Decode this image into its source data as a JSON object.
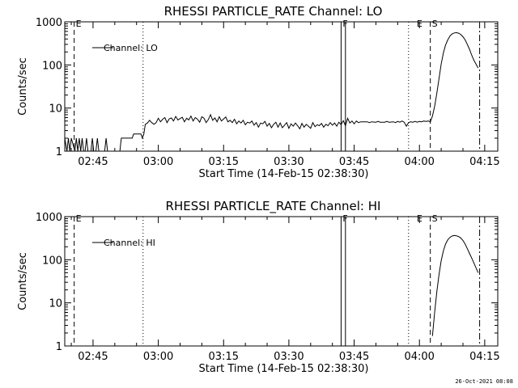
{
  "timestamp": "26-Oct-2021 08:08",
  "chart_data": [
    {
      "type": "line",
      "title": "RHESSI PARTICLE_RATE Channel: LO",
      "ylabel": "Counts/sec",
      "xlabel": "Start Time (14-Feb-15 02:38:30)",
      "yscale": "log",
      "ylim": [
        1,
        1000
      ],
      "xlim": [
        "02:38:30",
        "04:18:00"
      ],
      "x_ticks": [
        "02:45",
        "03:00",
        "03:15",
        "03:30",
        "03:45",
        "04:00",
        "04:15"
      ],
      "y_ticks": [
        "1",
        "10",
        "100",
        "1000"
      ],
      "legend": {
        "label": "Channel: LO",
        "placement": "top-left"
      },
      "markers": [
        {
          "label": "E",
          "time": "02:40:40",
          "style": "dashed"
        },
        {
          "time": "02:56:30",
          "style": "dotted"
        },
        {
          "label": "F",
          "time": "03:42:00",
          "style": "solid"
        },
        {
          "time": "03:43:00",
          "style": "solid"
        },
        {
          "time": "03:57:30",
          "style": "dotted"
        },
        {
          "label": "E",
          "time": "03:59:00"
        },
        {
          "label": "S",
          "time": "04:02:30",
          "style": "dashed"
        },
        {
          "time": "04:13:50",
          "style": "dashdot"
        }
      ],
      "series": [
        {
          "points": [
            [
              "02:38:30",
              2
            ],
            [
              "02:39:00",
              1
            ],
            [
              "02:39:20",
              2
            ],
            [
              "02:39:40",
              1
            ],
            [
              "02:40:00",
              2
            ],
            [
              "02:40:20",
              1.5
            ],
            [
              "02:40:50",
              1
            ],
            [
              "02:41:10",
              2
            ],
            [
              "02:41:30",
              1
            ],
            [
              "02:41:50",
              2
            ],
            [
              "02:42:10",
              1
            ],
            [
              "02:42:30",
              2
            ],
            [
              "02:42:50",
              1
            ],
            [
              "02:43:10",
              1
            ],
            [
              "02:43:30",
              2
            ],
            [
              "02:43:50",
              1
            ],
            [
              "02:44:10",
              1
            ],
            [
              "02:44:30",
              1
            ],
            [
              "02:44:50",
              2
            ],
            [
              "02:45:10",
              1
            ],
            [
              "02:45:40",
              1
            ],
            [
              "02:46:00",
              2
            ],
            [
              "02:46:20",
              1
            ],
            [
              "02:47:00",
              1
            ],
            [
              "02:47:40",
              1
            ],
            [
              "02:48:00",
              2
            ],
            [
              "02:48:20",
              1
            ],
            [
              "02:49:00",
              1
            ],
            [
              "02:49:40",
              1
            ],
            [
              "02:50:00",
              1
            ],
            [
              "02:50:40",
              1
            ],
            [
              "02:51:10",
              1
            ],
            [
              "02:51:30",
              2
            ],
            [
              "02:54:00",
              2
            ],
            [
              "02:54:20",
              2.5
            ],
            [
              "02:56:00",
              2.5
            ],
            [
              "02:56:20",
              2
            ],
            [
              "02:56:40",
              2.5
            ],
            [
              "02:57:00",
              4.2
            ],
            [
              "02:57:30",
              4.5
            ],
            [
              "02:58:00",
              5.2
            ],
            [
              "02:58:30",
              4.6
            ],
            [
              "02:59:00",
              4.2
            ],
            [
              "02:59:30",
              4.6
            ],
            [
              "03:00:00",
              5.8
            ],
            [
              "03:00:30",
              4.8
            ],
            [
              "03:01:00",
              5.5
            ],
            [
              "03:01:30",
              6.0
            ],
            [
              "03:02:00",
              4.6
            ],
            [
              "03:02:30",
              5.6
            ],
            [
              "03:03:00",
              5.9
            ],
            [
              "03:03:30",
              5.0
            ],
            [
              "03:04:00",
              6.4
            ],
            [
              "03:04:30",
              5.3
            ],
            [
              "03:05:00",
              5.7
            ],
            [
              "03:05:30",
              6.1
            ],
            [
              "03:06:00",
              4.8
            ],
            [
              "03:06:30",
              5.8
            ],
            [
              "03:07:00",
              5.3
            ],
            [
              "03:07:30",
              6.5
            ],
            [
              "03:08:00",
              5.0
            ],
            [
              "03:08:30",
              6.0
            ],
            [
              "03:09:00",
              5.5
            ],
            [
              "03:09:30",
              4.7
            ],
            [
              "03:10:00",
              6.3
            ],
            [
              "03:10:30",
              5.8
            ],
            [
              "03:11:00",
              4.6
            ],
            [
              "03:11:30",
              5.4
            ],
            [
              "03:12:00",
              7.0
            ],
            [
              "03:12:30",
              5.2
            ],
            [
              "03:13:00",
              5.9
            ],
            [
              "03:13:30",
              4.8
            ],
            [
              "03:14:00",
              6.3
            ],
            [
              "03:14:30",
              5.0
            ],
            [
              "03:15:00",
              5.6
            ],
            [
              "03:15:30",
              6.2
            ],
            [
              "03:16:00",
              4.8
            ],
            [
              "03:16:30",
              5.2
            ],
            [
              "03:17:00",
              4.6
            ],
            [
              "03:17:30",
              5.5
            ],
            [
              "03:18:00",
              4.3
            ],
            [
              "03:18:30",
              5.0
            ],
            [
              "03:19:00",
              4.5
            ],
            [
              "03:19:30",
              5.2
            ],
            [
              "03:20:00",
              4.1
            ],
            [
              "03:20:30",
              4.7
            ],
            [
              "03:21:00",
              4.5
            ],
            [
              "03:21:30",
              5.0
            ],
            [
              "03:22:00",
              4.0
            ],
            [
              "03:22:30",
              4.6
            ],
            [
              "03:23:00",
              3.6
            ],
            [
              "03:23:30",
              4.5
            ],
            [
              "03:24:00",
              4.3
            ],
            [
              "03:24:30",
              4.9
            ],
            [
              "03:25:00",
              3.8
            ],
            [
              "03:25:30",
              4.4
            ],
            [
              "03:26:00",
              3.5
            ],
            [
              "03:26:30",
              4.2
            ],
            [
              "03:27:00",
              4.7
            ],
            [
              "03:27:30",
              3.6
            ],
            [
              "03:28:00",
              4.5
            ],
            [
              "03:28:30",
              3.5
            ],
            [
              "03:29:00",
              4.0
            ],
            [
              "03:29:30",
              4.6
            ],
            [
              "03:30:00",
              3.4
            ],
            [
              "03:30:30",
              4.3
            ],
            [
              "03:31:00",
              3.8
            ],
            [
              "03:31:30",
              4.5
            ],
            [
              "03:32:00",
              3.9
            ],
            [
              "03:32:30",
              3.3
            ],
            [
              "03:33:00",
              4.4
            ],
            [
              "03:33:30",
              3.6
            ],
            [
              "03:34:00",
              4.2
            ],
            [
              "03:34:30",
              3.8
            ],
            [
              "03:35:00",
              3.4
            ],
            [
              "03:35:30",
              4.6
            ],
            [
              "03:36:00",
              3.7
            ],
            [
              "03:36:30",
              4.1
            ],
            [
              "03:37:00",
              3.9
            ],
            [
              "03:37:30",
              4.4
            ],
            [
              "03:38:00",
              3.6
            ],
            [
              "03:38:30",
              4.2
            ],
            [
              "03:39:00",
              3.9
            ],
            [
              "03:39:30",
              4.6
            ],
            [
              "03:40:00",
              4.0
            ],
            [
              "03:40:30",
              4.5
            ],
            [
              "03:41:00",
              3.8
            ],
            [
              "03:41:30",
              4.7
            ],
            [
              "03:42:00",
              4.1
            ],
            [
              "03:42:30",
              5.1
            ],
            [
              "03:43:00",
              3.9
            ],
            [
              "03:43:30",
              5.8
            ],
            [
              "03:44:00",
              4.5
            ],
            [
              "03:44:30",
              5.0
            ],
            [
              "03:45:00",
              4.3
            ],
            [
              "03:45:30",
              5.0
            ],
            [
              "03:46:00",
              4.6
            ],
            [
              "03:46:30",
              4.8
            ],
            [
              "03:47:00",
              4.8
            ],
            [
              "03:48:00",
              4.8
            ],
            [
              "03:48:30",
              4.6
            ],
            [
              "03:49:00",
              4.8
            ],
            [
              "03:50:00",
              4.7
            ],
            [
              "03:50:30",
              4.9
            ],
            [
              "03:51:00",
              4.7
            ],
            [
              "03:52:00",
              4.7
            ],
            [
              "03:52:30",
              4.9
            ],
            [
              "03:53:00",
              4.7
            ],
            [
              "03:54:00",
              4.8
            ],
            [
              "03:54:30",
              4.6
            ],
            [
              "03:55:00",
              4.9
            ],
            [
              "03:55:30",
              4.7
            ],
            [
              "03:56:00",
              5.0
            ],
            [
              "03:56:30",
              4.7
            ],
            [
              "03:57:00",
              3.8
            ],
            [
              "03:57:30",
              4.6
            ],
            [
              "03:58:00",
              4.8
            ],
            [
              "03:58:30",
              4.7
            ],
            [
              "03:59:00",
              4.9
            ],
            [
              "03:59:30",
              4.7
            ],
            [
              "04:00:00",
              4.9
            ],
            [
              "04:00:30",
              4.8
            ],
            [
              "04:01:00",
              5.0
            ],
            [
              "04:01:30",
              4.9
            ],
            [
              "04:02:00",
              5.0
            ],
            [
              "04:02:30",
              4.8
            ],
            [
              "04:03:00",
              6.5
            ],
            [
              "04:03:30",
              11
            ],
            [
              "04:04:00",
              22
            ],
            [
              "04:04:30",
              48
            ],
            [
              "04:05:00",
              105
            ],
            [
              "04:05:30",
              190
            ],
            [
              "04:06:00",
              290
            ],
            [
              "04:06:30",
              380
            ],
            [
              "04:07:00",
              470
            ],
            [
              "04:07:30",
              520
            ],
            [
              "04:08:00",
              550
            ],
            [
              "04:08:30",
              560
            ],
            [
              "04:09:00",
              545
            ],
            [
              "04:09:30",
              510
            ],
            [
              "04:10:00",
              450
            ],
            [
              "04:10:30",
              380
            ],
            [
              "04:11:00",
              300
            ],
            [
              "04:11:30",
              230
            ],
            [
              "04:12:00",
              170
            ],
            [
              "04:12:30",
              130
            ],
            [
              "04:13:00",
              105
            ],
            [
              "04:13:30",
              85
            ]
          ]
        }
      ]
    },
    {
      "type": "line",
      "title": "RHESSI PARTICLE_RATE Channel: HI",
      "ylabel": "Counts/sec",
      "xlabel": "Start Time (14-Feb-15 02:38:30)",
      "yscale": "log",
      "ylim": [
        1,
        1000
      ],
      "xlim": [
        "02:38:30",
        "04:18:00"
      ],
      "x_ticks": [
        "02:45",
        "03:00",
        "03:15",
        "03:30",
        "03:45",
        "04:00",
        "04:15"
      ],
      "y_ticks": [
        "1",
        "10",
        "100",
        "1000"
      ],
      "legend": {
        "label": "Channel: HI",
        "placement": "top-left"
      },
      "markers": [
        {
          "label": "E",
          "time": "02:40:40",
          "style": "dashed"
        },
        {
          "time": "02:56:30",
          "style": "dotted"
        },
        {
          "label": "F",
          "time": "03:42:00",
          "style": "solid"
        },
        {
          "time": "03:43:00",
          "style": "solid"
        },
        {
          "time": "03:57:30",
          "style": "dotted"
        },
        {
          "label": "E",
          "time": "03:59:00"
        },
        {
          "label": "S",
          "time": "04:02:30",
          "style": "dashed"
        },
        {
          "time": "04:13:50",
          "style": "dashdot"
        }
      ],
      "series": [
        {
          "points": [
            [
              "04:03:00",
              1.7
            ],
            [
              "04:03:30",
              6
            ],
            [
              "04:04:00",
              18
            ],
            [
              "04:04:30",
              45
            ],
            [
              "04:05:00",
              95
            ],
            [
              "04:05:30",
              160
            ],
            [
              "04:06:00",
              230
            ],
            [
              "04:06:30",
              290
            ],
            [
              "04:07:00",
              330
            ],
            [
              "04:07:30",
              355
            ],
            [
              "04:08:00",
              365
            ],
            [
              "04:08:30",
              360
            ],
            [
              "04:09:00",
              345
            ],
            [
              "04:09:30",
              320
            ],
            [
              "04:10:00",
              280
            ],
            [
              "04:10:30",
              230
            ],
            [
              "04:11:00",
              180
            ],
            [
              "04:11:30",
              140
            ],
            [
              "04:12:00",
              110
            ],
            [
              "04:12:30",
              85
            ],
            [
              "04:13:00",
              65
            ],
            [
              "04:13:30",
              50
            ]
          ]
        }
      ]
    }
  ]
}
